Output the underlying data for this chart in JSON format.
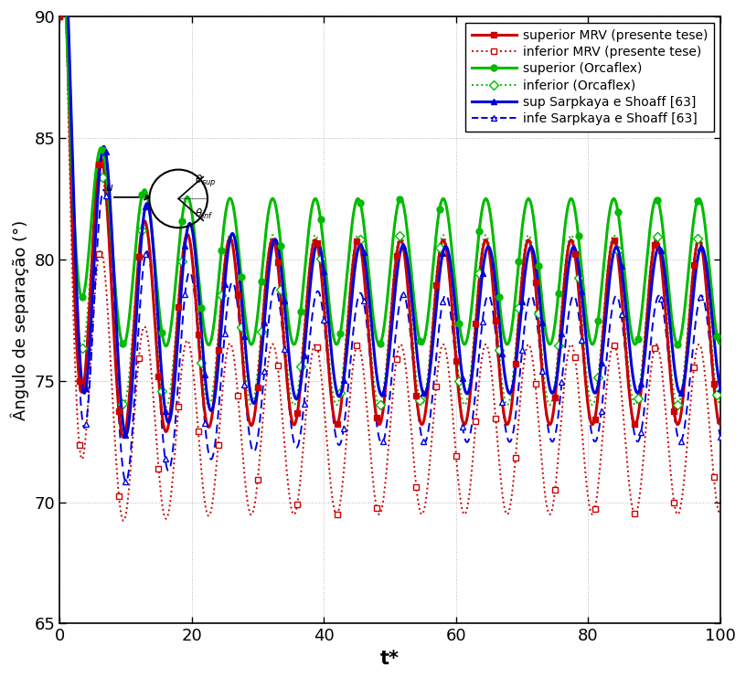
{
  "title": "",
  "xlabel": "t*",
  "ylabel": "Ângulo de separação (°)",
  "xlim": [
    0,
    100
  ],
  "ylim": [
    65,
    90
  ],
  "yticks": [
    65,
    70,
    75,
    80,
    85,
    90
  ],
  "xticks": [
    0,
    20,
    40,
    60,
    80,
    100
  ],
  "grid_color": "#888888",
  "legend_labels": [
    "superior MRV (presente tese)",
    "inferior MRV (presente tese)",
    "superior (Orcaflex)",
    "inferior (Orcaflex)",
    "sup Sarpkaya e Shoaff [63]",
    "infe Sarpkaya e Shoaff [63]"
  ],
  "colors": {
    "mrv_sup": "#cc0000",
    "mrv_inf": "#cc0000",
    "orc_sup": "#00bb00",
    "orc_inf": "#00bb00",
    "sarp_sup": "#0000dd",
    "sarp_inf": "#0000dd"
  },
  "background_color": "#ffffff",
  "freq": 0.155,
  "mrv_sup_eq": 77.0,
  "mrv_inf_eq": 73.0,
  "orc_sup_eq": 79.5,
  "orc_inf_eq": 77.5,
  "sarp_sup_eq": 77.5,
  "sarp_inf_eq": 75.5
}
